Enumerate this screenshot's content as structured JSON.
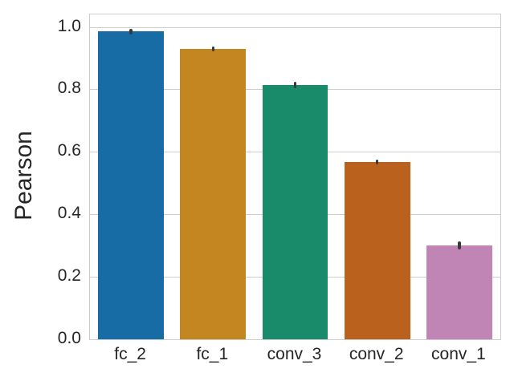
{
  "chart_data": {
    "type": "bar",
    "categories": [
      "fc_2",
      "fc_1",
      "conv_3",
      "conv_2",
      "conv_1"
    ],
    "values": [
      0.985,
      0.93,
      0.815,
      0.567,
      0.3
    ],
    "errors": [
      0.008,
      0.008,
      0.01,
      0.008,
      0.013
    ],
    "bar_colors": [
      "#176ca6",
      "#c38620",
      "#198b6b",
      "#ba611e",
      "#c185b5"
    ],
    "title": "",
    "xlabel": "",
    "ylabel": "Pearson",
    "ylim": [
      0,
      1.04
    ],
    "yticks": [
      0.0,
      0.2,
      0.4,
      0.6,
      0.8,
      1.0
    ],
    "ytick_labels": [
      "0.0",
      "0.2",
      "0.4",
      "0.6",
      "0.8",
      "1.0"
    ],
    "grid": true,
    "legend": "none",
    "grid_color": "#cccccc",
    "spine_color": "#cccccc",
    "text_color": "#262626",
    "errorbar_color": "#3a3a3a",
    "bar_width_fraction": 0.8
  }
}
